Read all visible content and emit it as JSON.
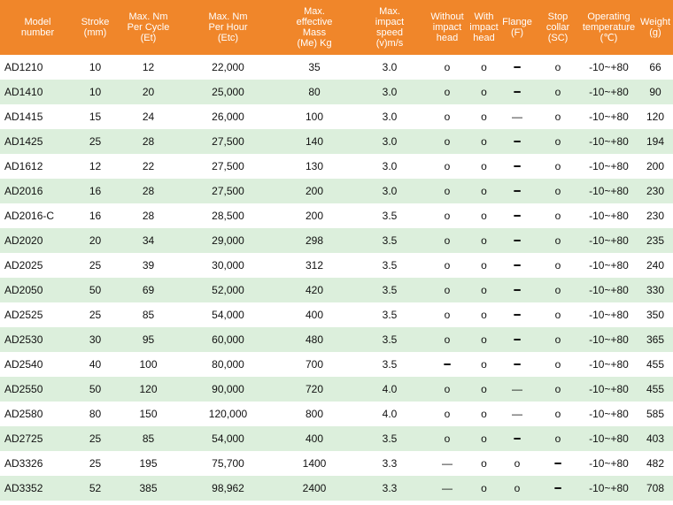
{
  "table": {
    "header": [
      [
        "Model",
        "number"
      ],
      [
        "Stroke",
        "(mm)"
      ],
      [
        "Max. Nm",
        "Per Cycle",
        "(Et)"
      ],
      [
        "Max. Nm",
        "Per Hour",
        "(Etc)"
      ],
      [
        "Max.",
        "effective",
        "Mass",
        "(Me) Kg"
      ],
      [
        "Max.",
        "impact",
        "speed",
        "(v)m/s"
      ],
      [
        "Without",
        "impact",
        "head"
      ],
      [
        "With",
        "impact",
        "head"
      ],
      [
        "Flange",
        "(F)"
      ],
      [
        "Stop",
        "collar",
        "(SC)"
      ],
      [
        "Operating",
        "temperature",
        "(℃)"
      ],
      [
        "Weight",
        "(g)"
      ]
    ],
    "rows": [
      [
        "AD1210",
        "10",
        "12",
        "22,000",
        "35",
        "3.0",
        "o",
        "o",
        "━",
        "o",
        "-10~+80",
        "66"
      ],
      [
        "AD1410",
        "10",
        "20",
        "25,000",
        "80",
        "3.0",
        "o",
        "o",
        "━",
        "o",
        "-10~+80",
        "90"
      ],
      [
        "AD1415",
        "15",
        "24",
        "26,000",
        "100",
        "3.0",
        "o",
        "o",
        "—",
        "o",
        "-10~+80",
        "120"
      ],
      [
        "AD1425",
        "25",
        "28",
        "27,500",
        "140",
        "3.0",
        "o",
        "o",
        "━",
        "o",
        "-10~+80",
        "194"
      ],
      [
        "AD1612",
        "12",
        "22",
        "27,500",
        "130",
        "3.0",
        "o",
        "o",
        "━",
        "o",
        "-10~+80",
        "200"
      ],
      [
        "AD2016",
        "16",
        "28",
        "27,500",
        "200",
        "3.0",
        "o",
        "o",
        "━",
        "o",
        "-10~+80",
        "230"
      ],
      [
        "AD2016-C",
        "16",
        "28",
        "28,500",
        "200",
        "3.5",
        "o",
        "o",
        "━",
        "o",
        "-10~+80",
        "230"
      ],
      [
        "AD2020",
        "20",
        "34",
        "29,000",
        "298",
        "3.5",
        "o",
        "o",
        "━",
        "o",
        "-10~+80",
        "235"
      ],
      [
        "AD2025",
        "25",
        "39",
        "30,000",
        "312",
        "3.5",
        "o",
        "o",
        "━",
        "o",
        "-10~+80",
        "240"
      ],
      [
        "AD2050",
        "50",
        "69",
        "52,000",
        "420",
        "3.5",
        "o",
        "o",
        "━",
        "o",
        "-10~+80",
        "330"
      ],
      [
        "AD2525",
        "25",
        "85",
        "54,000",
        "400",
        "3.5",
        "o",
        "o",
        "━",
        "o",
        "-10~+80",
        "350"
      ],
      [
        "AD2530",
        "30",
        "95",
        "60,000",
        "480",
        "3.5",
        "o",
        "o",
        "━",
        "o",
        "-10~+80",
        "365"
      ],
      [
        "AD2540",
        "40",
        "100",
        "80,000",
        "700",
        "3.5",
        "━",
        "o",
        "━",
        "o",
        "-10~+80",
        "455"
      ],
      [
        "AD2550",
        "50",
        "120",
        "90,000",
        "720",
        "4.0",
        "o",
        "o",
        "—",
        "o",
        "-10~+80",
        "455"
      ],
      [
        "AD2580",
        "80",
        "150",
        "120,000",
        "800",
        "4.0",
        "o",
        "o",
        "—",
        "o",
        "-10~+80",
        "585"
      ],
      [
        "AD2725",
        "25",
        "85",
        "54,000",
        "400",
        "3.5",
        "o",
        "o",
        "━",
        "o",
        "-10~+80",
        "403"
      ],
      [
        "AD3326",
        "25",
        "195",
        "75,700",
        "1400",
        "3.3",
        "—",
        "o",
        "o",
        "━",
        "-10~+80",
        "482"
      ],
      [
        "AD3352",
        "52",
        "385",
        "98,962",
        "2400",
        "3.3",
        "—",
        "o",
        "o",
        "━",
        "-10~+80",
        "708"
      ]
    ]
  }
}
